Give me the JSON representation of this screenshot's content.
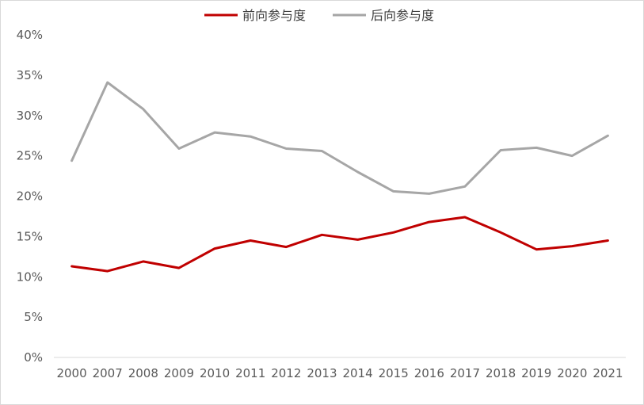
{
  "chart_data": {
    "type": "line",
    "x": [
      "2000",
      "2007",
      "2008",
      "2009",
      "2010",
      "2011",
      "2012",
      "2013",
      "2014",
      "2015",
      "2016",
      "2017",
      "2018",
      "2019",
      "2020",
      "2021"
    ],
    "series": [
      {
        "name": "前向参与度",
        "color": "#C00000",
        "values": [
          11.3,
          10.7,
          11.9,
          11.1,
          13.5,
          14.5,
          13.7,
          15.2,
          14.6,
          15.5,
          16.8,
          17.4,
          15.5,
          13.4,
          13.8,
          14.5
        ]
      },
      {
        "name": "后向参与度",
        "color": "#A6A6A6",
        "values": [
          24.4,
          34.1,
          30.8,
          25.9,
          27.9,
          27.4,
          25.9,
          25.6,
          23.0,
          20.6,
          20.3,
          21.2,
          25.7,
          26.0,
          25.0,
          27.5
        ]
      }
    ],
    "yticks": [
      "0%",
      "5%",
      "10%",
      "15%",
      "20%",
      "25%",
      "30%",
      "35%",
      "40%"
    ],
    "ylim": [
      0,
      40
    ],
    "legend_position": "top-center",
    "grid": false
  }
}
